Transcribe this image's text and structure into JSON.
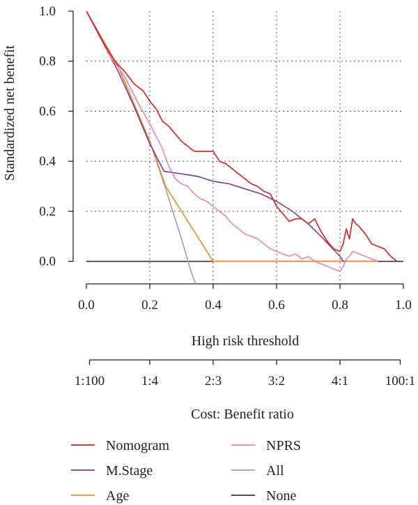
{
  "chart_data": {
    "type": "line",
    "title": "",
    "xlabel": "High risk threshold",
    "ylabel": "Standardized net benefit",
    "secondary_xlabel": "Cost: Benefit ratio",
    "xlim": [
      0,
      1
    ],
    "ylim": [
      -0.09,
      1.0
    ],
    "x_ticks": [
      0.0,
      0.2,
      0.4,
      0.6,
      0.8,
      1.0
    ],
    "x_tick_labels": [
      "0.0",
      "0.2",
      "0.4",
      "0.6",
      "0.8",
      "1.0"
    ],
    "y_ticks": [
      0.0,
      0.2,
      0.4,
      0.6,
      0.8,
      1.0
    ],
    "y_tick_labels": [
      "0.0",
      "0.2",
      "0.4",
      "0.6",
      "0.8",
      "1.0"
    ],
    "ratio_ticks": [
      0.0099,
      0.2,
      0.4,
      0.6,
      0.8,
      0.99
    ],
    "ratio_tick_labels": [
      "1:100",
      "1:4",
      "2:3",
      "3:2",
      "4:1",
      "100:1"
    ],
    "grid": true,
    "legend_position": "bottom",
    "series": [
      {
        "name": "Nomogram",
        "color": "#e41a1c",
        "x": [
          0.0,
          0.03,
          0.06,
          0.09,
          0.12,
          0.15,
          0.18,
          0.2,
          0.22,
          0.24,
          0.26,
          0.28,
          0.3,
          0.32,
          0.34,
          0.36,
          0.38,
          0.4,
          0.42,
          0.44,
          0.46,
          0.48,
          0.5,
          0.52,
          0.54,
          0.56,
          0.58,
          0.6,
          0.62,
          0.64,
          0.66,
          0.68,
          0.7,
          0.72,
          0.74,
          0.76,
          0.78,
          0.8,
          0.81,
          0.82,
          0.83,
          0.84,
          0.85,
          0.86,
          0.88,
          0.9,
          0.92,
          0.94,
          0.96,
          0.98
        ],
        "y": [
          1.0,
          0.93,
          0.86,
          0.8,
          0.76,
          0.71,
          0.68,
          0.64,
          0.61,
          0.56,
          0.54,
          0.51,
          0.48,
          0.46,
          0.44,
          0.44,
          0.44,
          0.44,
          0.4,
          0.39,
          0.37,
          0.35,
          0.33,
          0.31,
          0.3,
          0.28,
          0.27,
          0.22,
          0.19,
          0.16,
          0.17,
          0.17,
          0.15,
          0.17,
          0.12,
          0.08,
          0.05,
          0.04,
          0.07,
          0.13,
          0.09,
          0.17,
          0.15,
          0.14,
          0.11,
          0.07,
          0.06,
          0.05,
          0.02,
          0.0
        ]
      },
      {
        "name": "NPRS",
        "color": "#f07fb8",
        "x": [
          0.0,
          0.04,
          0.08,
          0.12,
          0.16,
          0.2,
          0.22,
          0.24,
          0.26,
          0.28,
          0.3,
          0.32,
          0.34,
          0.36,
          0.38,
          0.4,
          0.42,
          0.44,
          0.46,
          0.48,
          0.5,
          0.52,
          0.54,
          0.56,
          0.58,
          0.6,
          0.62,
          0.64,
          0.66,
          0.68,
          0.7,
          0.72,
          0.74,
          0.76,
          0.78,
          0.8,
          0.81,
          0.82,
          0.83,
          0.84,
          0.86,
          0.88,
          0.9,
          0.92
        ],
        "y": [
          1.0,
          0.91,
          0.81,
          0.74,
          0.64,
          0.55,
          0.5,
          0.45,
          0.38,
          0.33,
          0.31,
          0.3,
          0.27,
          0.25,
          0.24,
          0.22,
          0.2,
          0.18,
          0.15,
          0.13,
          0.11,
          0.1,
          0.09,
          0.07,
          0.05,
          0.04,
          0.03,
          0.02,
          0.03,
          0.01,
          0.02,
          0.0,
          -0.01,
          -0.02,
          -0.03,
          -0.04,
          -0.02,
          0.01,
          0.02,
          0.04,
          0.03,
          0.02,
          0.01,
          0.0
        ]
      },
      {
        "name": "M.Stage",
        "color": "#7e3a97",
        "x": [
          0.0,
          0.05,
          0.1,
          0.15,
          0.2,
          0.245,
          0.3,
          0.35,
          0.4,
          0.45,
          0.5,
          0.55,
          0.6,
          0.65,
          0.7,
          0.74,
          0.77,
          0.8,
          0.81,
          0.82
        ],
        "y": [
          1.0,
          0.88,
          0.76,
          0.62,
          0.47,
          0.36,
          0.35,
          0.34,
          0.32,
          0.31,
          0.29,
          0.27,
          0.24,
          0.2,
          0.15,
          0.1,
          0.06,
          0.02,
          0.0,
          0.0
        ]
      },
      {
        "name": "All",
        "color": "#a0a0a0",
        "x": [
          0.0,
          0.1,
          0.2,
          0.25,
          0.3,
          0.33,
          0.345
        ],
        "y": [
          1.0,
          0.78,
          0.48,
          0.29,
          0.09,
          -0.04,
          -0.09
        ]
      },
      {
        "name": "Age",
        "color": "#f0861f",
        "x": [
          0.0,
          0.1,
          0.2,
          0.25,
          0.3,
          0.35,
          0.4,
          0.6,
          0.8,
          0.92
        ],
        "y": [
          1.0,
          0.78,
          0.48,
          0.3,
          0.2,
          0.1,
          0.0,
          0.0,
          0.0,
          0.0
        ]
      },
      {
        "name": "None",
        "color": "#333333",
        "x": [
          0.0,
          1.0
        ],
        "y": [
          0.0,
          0.0
        ]
      }
    ]
  },
  "legend": {
    "items": [
      {
        "label": "Nomogram",
        "color": "#e41a1c"
      },
      {
        "label": "NPRS",
        "color": "#f07fb8"
      },
      {
        "label": "M.Stage",
        "color": "#7e3a97"
      },
      {
        "label": "All",
        "color": "#a0a0a0"
      },
      {
        "label": "Age",
        "color": "#f0861f"
      },
      {
        "label": "None",
        "color": "#333333"
      }
    ]
  }
}
